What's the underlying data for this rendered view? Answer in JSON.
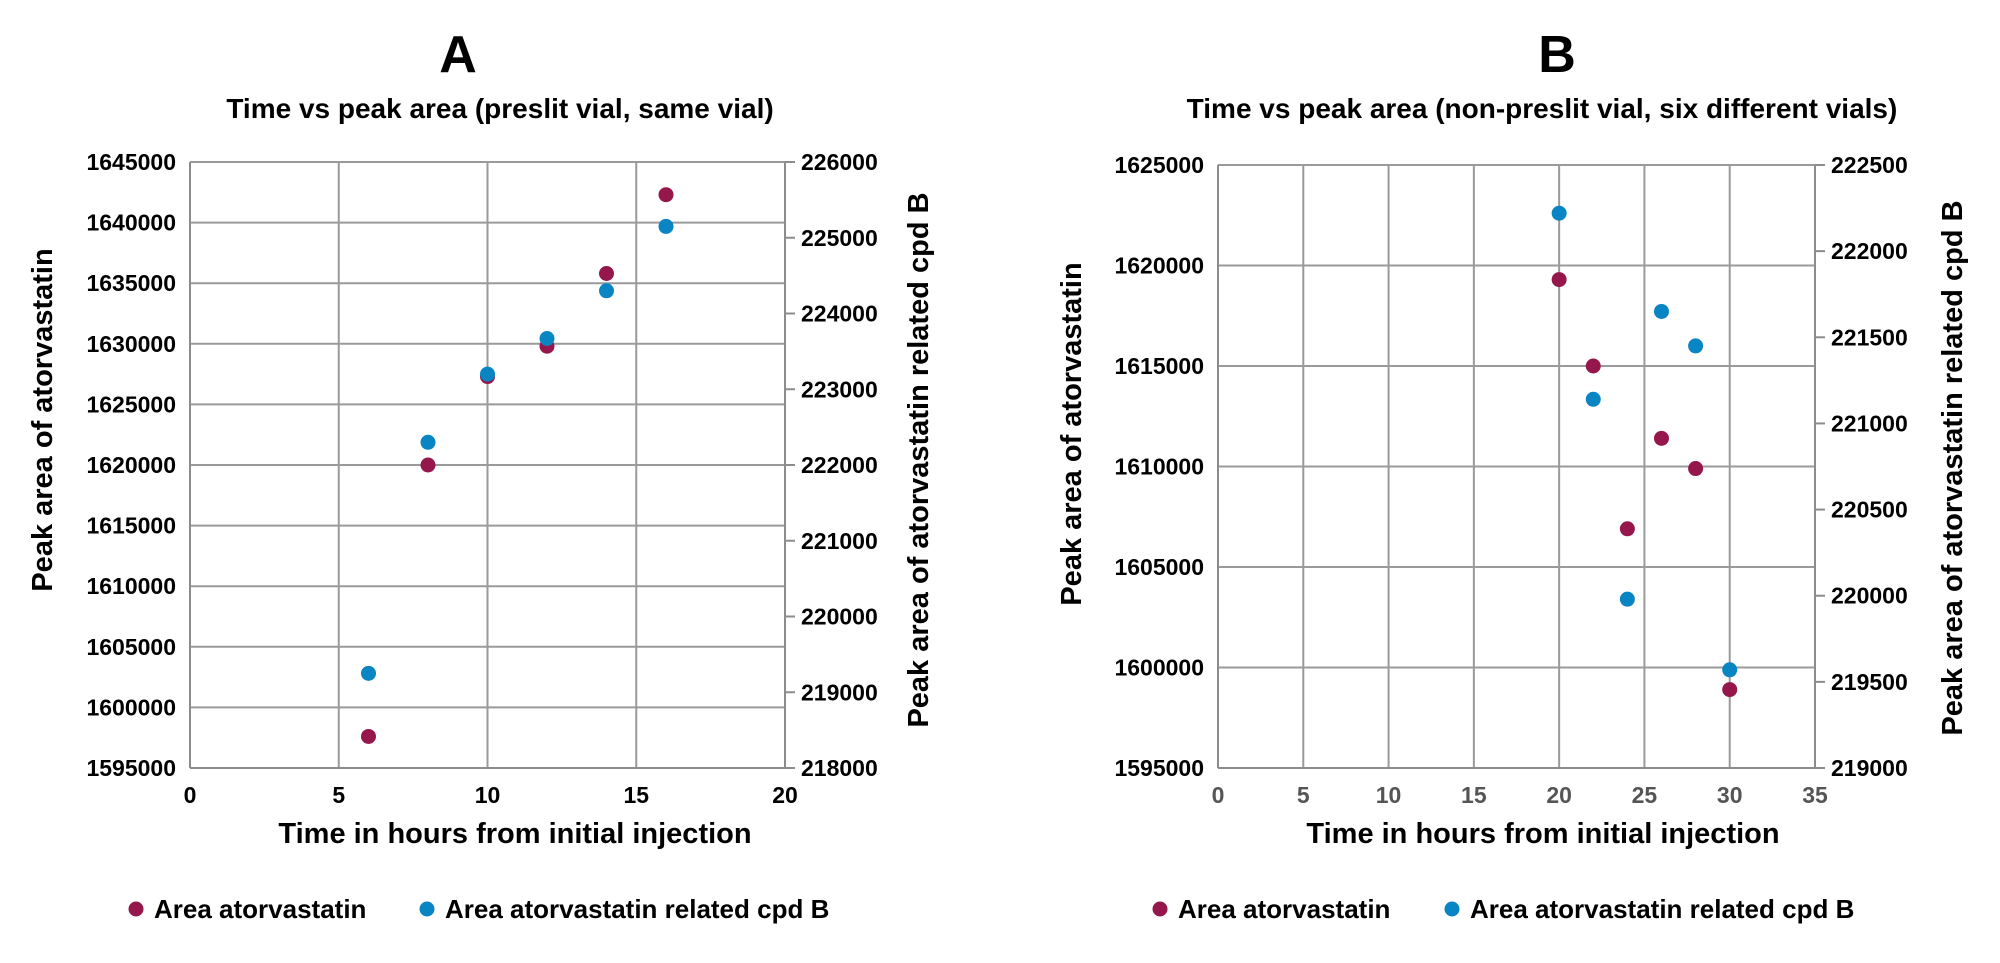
{
  "colors": {
    "atorvastatin": "#95174c",
    "cpdB": "#0a85c3",
    "grid": "#9a9a9a"
  },
  "chart_data": [
    {
      "type": "scatter",
      "panel": "A",
      "title": "Time vs peak area (preslit vial, same vial)",
      "xlabel": "Time in hours from initial injection",
      "ylabel": "Peak area of atorvastatin",
      "y2label": "Peak area of atorvastatin related cpd B",
      "xlim": [
        0,
        20
      ],
      "xticks": [
        "0",
        "5",
        "10",
        "15",
        "20"
      ],
      "ylim": [
        1595000,
        1645000
      ],
      "yticks": [
        "1595000",
        "1600000",
        "1605000",
        "1610000",
        "1615000",
        "1620000",
        "1625000",
        "1630000",
        "1635000",
        "1640000",
        "1645000"
      ],
      "y2lim": [
        218000,
        226000
      ],
      "y2ticks": [
        "218000",
        "219000",
        "220000",
        "221000",
        "222000",
        "223000",
        "224000",
        "225000",
        "226000"
      ],
      "grid": true,
      "legend_position": "bottom",
      "series": [
        {
          "name": "Area atorvastatin",
          "axis": "left",
          "x": [
            6,
            8,
            10,
            12,
            14,
            16
          ],
          "y": [
            1597600,
            1620000,
            1627300,
            1629800,
            1635800,
            1642300
          ]
        },
        {
          "name": "Area atorvastatin related cpd B",
          "axis": "right",
          "x": [
            6,
            8,
            10,
            12,
            14,
            16
          ],
          "y": [
            219250,
            222300,
            223200,
            223670,
            224300,
            225150
          ]
        }
      ]
    },
    {
      "type": "scatter",
      "panel": "B",
      "title": "Time vs peak area (non-preslit vial, six different vials)",
      "xlabel": "Time in hours from initial injection",
      "ylabel": "Peak area of atorvastatin",
      "y2label": "Peak area of atorvastatin related cpd B",
      "xlim": [
        0,
        35
      ],
      "xticks": [
        "0",
        "5",
        "10",
        "15",
        "20",
        "25",
        "30",
        "35"
      ],
      "ylim": [
        1595000,
        1625000
      ],
      "yticks": [
        "1595000",
        "1600000",
        "1605000",
        "1610000",
        "1615000",
        "1620000",
        "1625000"
      ],
      "y2lim": [
        219000,
        222500
      ],
      "y2ticks": [
        "219000",
        "219500",
        "220000",
        "220500",
        "221000",
        "221500",
        "222000",
        "222500"
      ],
      "grid": true,
      "legend_position": "bottom",
      "series": [
        {
          "name": "Area atorvastatin",
          "axis": "left",
          "x": [
            20,
            22,
            24,
            26,
            28,
            30
          ],
          "y": [
            1619300,
            1615000,
            1606900,
            1611400,
            1609900,
            1598900
          ]
        },
        {
          "name": "Area atorvastatin related cpd B",
          "axis": "right",
          "x": [
            20,
            22,
            24,
            26,
            28,
            30
          ],
          "y": [
            222220,
            221140,
            219980,
            221650,
            221450,
            219570
          ]
        }
      ]
    }
  ]
}
